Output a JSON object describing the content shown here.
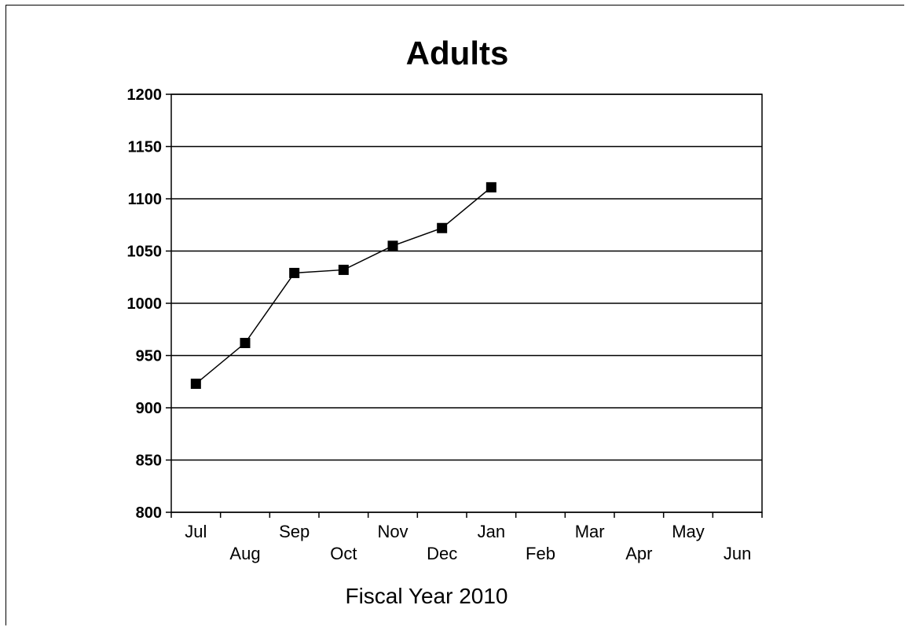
{
  "chart_data": {
    "type": "line",
    "title": "Adults",
    "xlabel": "Fiscal Year 2010",
    "ylabel": "",
    "categories": [
      "Jul",
      "Aug",
      "Sep",
      "Oct",
      "Nov",
      "Dec",
      "Jan",
      "Feb",
      "Mar",
      "Apr",
      "May",
      "Jun"
    ],
    "series": [
      {
        "values": [
          923,
          962,
          1029,
          1032,
          1055,
          1072,
          1111,
          null,
          null,
          null,
          null,
          null
        ]
      }
    ],
    "yticks": [
      "800",
      "850",
      "900",
      "950",
      "1000",
      "1050",
      "1100",
      "1150",
      "1200"
    ],
    "ylim": [
      800,
      1200
    ],
    "grid": true,
    "legend": "none",
    "line_color": "#000000",
    "marker": "square"
  }
}
